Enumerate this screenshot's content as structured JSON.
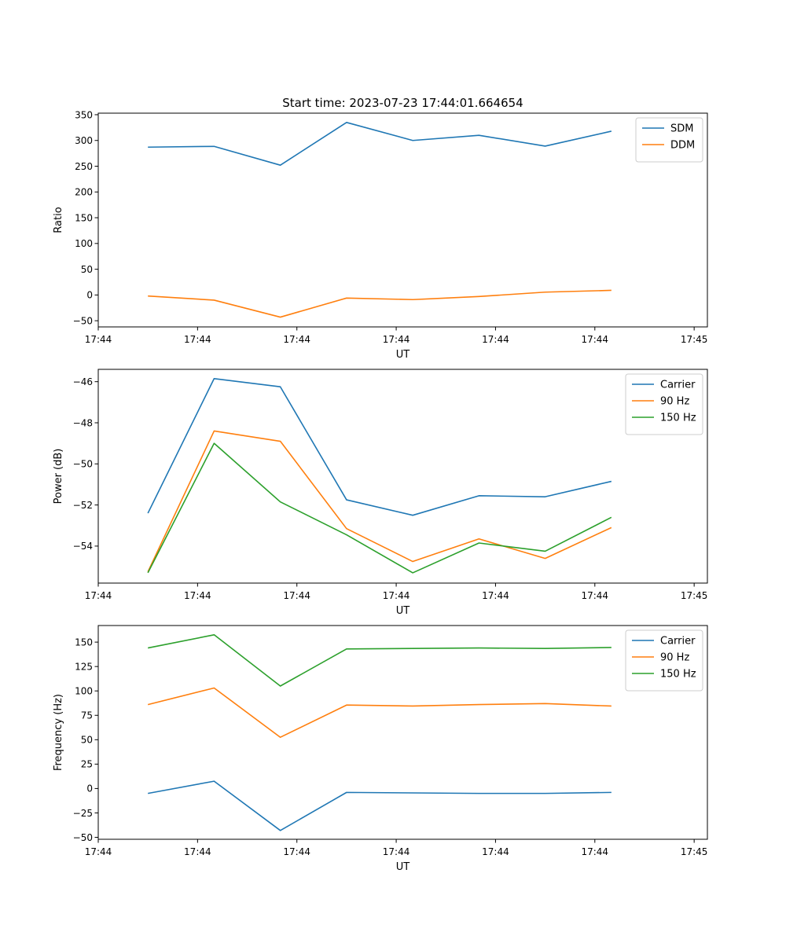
{
  "figure_title": "Start time: 2023-07-23 17:44:01.664654",
  "colors": {
    "c0": "#1f77b4",
    "c1": "#ff7f0e",
    "c2": "#2ca02c"
  },
  "chart_data": [
    {
      "type": "line",
      "title": "Start time: 2023-07-23 17:44:01.664654",
      "xlabel": "UT",
      "ylabel": "Ratio",
      "x": [
        0,
        1,
        2,
        3,
        4,
        5,
        6,
        7
      ],
      "xlim": [
        -0.75,
        8.45
      ],
      "ylim": [
        -62,
        353
      ],
      "xticks": [
        -0.75,
        0.75,
        2.25,
        3.75,
        5.25,
        6.75,
        8.25
      ],
      "xtick_labels": [
        "17:44",
        "17:44",
        "17:44",
        "17:44",
        "17:44",
        "17:44",
        "17:45"
      ],
      "yticks": [
        -50,
        0,
        50,
        100,
        150,
        200,
        250,
        300,
        350
      ],
      "ytick_labels": [
        "−50",
        "0",
        "50",
        "100",
        "150",
        "200",
        "250",
        "300",
        "350"
      ],
      "legend": "top-right",
      "series": [
        {
          "name": "SDM",
          "color": "#1f77b4",
          "values": [
            287,
            288.5,
            252,
            335,
            300,
            310,
            289,
            318
          ]
        },
        {
          "name": "DDM",
          "color": "#ff7f0e",
          "values": [
            -2,
            -10,
            -43,
            -6,
            -9,
            -3,
            5.5,
            9
          ]
        }
      ]
    },
    {
      "type": "line",
      "title": "",
      "xlabel": "UT",
      "ylabel": "Power (dB)",
      "x": [
        0,
        1,
        2,
        3,
        4,
        5,
        6,
        7
      ],
      "xlim": [
        -0.75,
        8.45
      ],
      "ylim": [
        -55.8,
        -45.4
      ],
      "xticks": [
        -0.75,
        0.75,
        2.25,
        3.75,
        5.25,
        6.75,
        8.25
      ],
      "xtick_labels": [
        "17:44",
        "17:44",
        "17:44",
        "17:44",
        "17:44",
        "17:44",
        "17:45"
      ],
      "yticks": [
        -54,
        -52,
        -50,
        -48,
        -46
      ],
      "ytick_labels": [
        "−54",
        "−52",
        "−50",
        "−48",
        "−46"
      ],
      "legend": "top-right",
      "series": [
        {
          "name": "Carrier",
          "color": "#1f77b4",
          "values": [
            -52.4,
            -45.85,
            -46.25,
            -51.75,
            -52.5,
            -51.55,
            -51.6,
            -50.85
          ]
        },
        {
          "name": "90 Hz",
          "color": "#ff7f0e",
          "values": [
            -55.25,
            -48.4,
            -48.9,
            -53.15,
            -54.75,
            -53.65,
            -54.6,
            -53.1
          ]
        },
        {
          "name": "150 Hz",
          "color": "#2ca02c",
          "values": [
            -55.3,
            -49.0,
            -51.85,
            -53.45,
            -55.3,
            -53.85,
            -54.25,
            -52.6
          ]
        }
      ]
    },
    {
      "type": "line",
      "title": "",
      "xlabel": "UT",
      "ylabel": "Frequency (Hz)",
      "x": [
        0,
        1,
        2,
        3,
        4,
        5,
        6,
        7
      ],
      "xlim": [
        -0.75,
        8.45
      ],
      "ylim": [
        -52,
        167
      ],
      "xticks": [
        -0.75,
        0.75,
        2.25,
        3.75,
        5.25,
        6.75,
        8.25
      ],
      "xtick_labels": [
        "17:44",
        "17:44",
        "17:44",
        "17:44",
        "17:44",
        "17:44",
        "17:45"
      ],
      "yticks": [
        -50,
        -25,
        0,
        25,
        50,
        75,
        100,
        125,
        150
      ],
      "ytick_labels": [
        "−50",
        "−25",
        "0",
        "25",
        "50",
        "75",
        "100",
        "125",
        "150"
      ],
      "legend": "top-right",
      "series": [
        {
          "name": "Carrier",
          "color": "#1f77b4",
          "values": [
            -5,
            7.5,
            -43,
            -4,
            -4.5,
            -5,
            -5,
            -4
          ]
        },
        {
          "name": "90 Hz",
          "color": "#ff7f0e",
          "values": [
            86,
            103,
            52.5,
            85.5,
            84.5,
            86,
            87,
            84.5
          ]
        },
        {
          "name": "150 Hz",
          "color": "#2ca02c",
          "values": [
            144,
            157.5,
            105,
            143,
            143.5,
            144,
            143.5,
            144.5
          ]
        }
      ]
    }
  ]
}
